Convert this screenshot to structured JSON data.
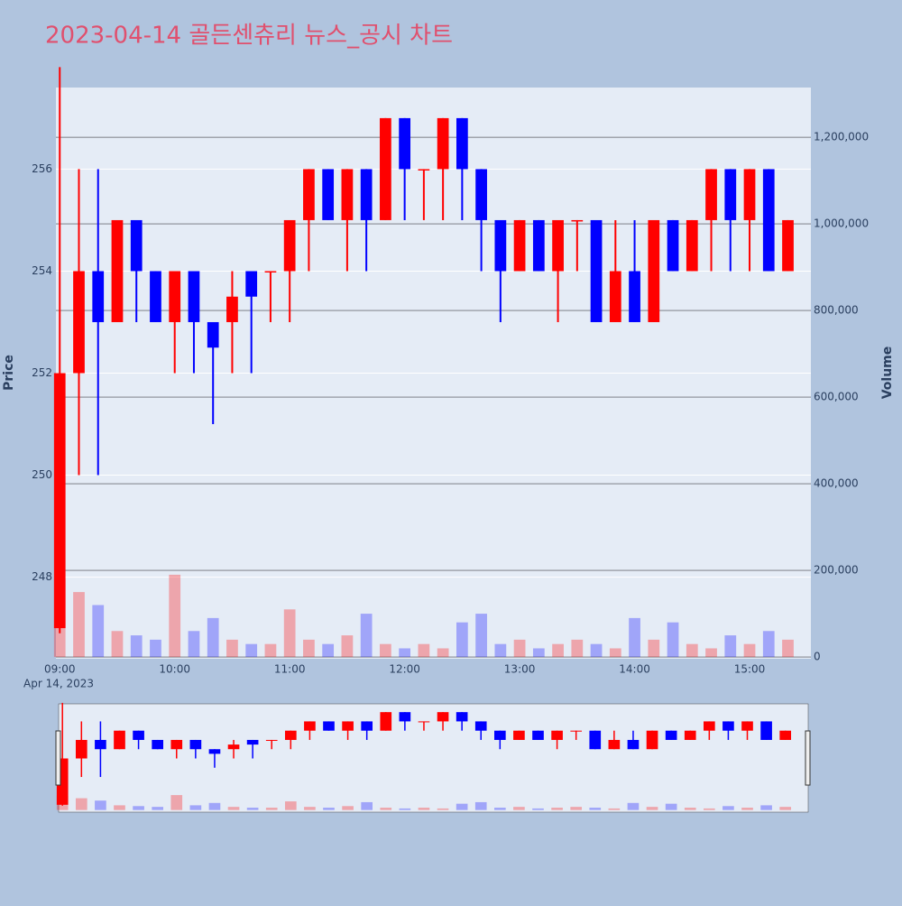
{
  "chart_data": {
    "type": "candlestick",
    "title": "2023-04-14 골든센츄리 뉴스_공시 차트",
    "y_title": "Price",
    "y2_title": "Volume",
    "x_date_label": "Apr 14, 2023",
    "x": [
      "09:00",
      "09:10",
      "09:20",
      "09:30",
      "09:40",
      "09:50",
      "10:00",
      "10:10",
      "10:20",
      "10:30",
      "10:40",
      "10:50",
      "11:00",
      "11:10",
      "11:20",
      "11:30",
      "11:40",
      "11:50",
      "12:00",
      "12:10",
      "12:20",
      "12:30",
      "12:40",
      "12:50",
      "13:00",
      "13:10",
      "13:20",
      "13:30",
      "13:40",
      "13:50",
      "14:00",
      "14:10",
      "14:20",
      "14:30",
      "14:40",
      "14:50",
      "15:00",
      "15:10",
      "15:20"
    ],
    "open": [
      247,
      252,
      254,
      253,
      255,
      254,
      253,
      254,
      253,
      253,
      254,
      254,
      254,
      255,
      256,
      255,
      256,
      255,
      257,
      256,
      256,
      257,
      256,
      255,
      254,
      255,
      254,
      255,
      255,
      253,
      254,
      253,
      255,
      254,
      255,
      256,
      255,
      256,
      254
    ],
    "high": [
      258,
      256,
      256,
      255,
      255,
      254,
      254,
      254,
      253,
      254,
      254,
      254,
      255,
      256,
      256,
      256,
      256,
      257,
      257,
      256,
      257,
      257,
      256,
      255,
      255,
      255,
      255,
      255,
      255,
      255,
      255,
      255,
      255,
      255,
      256,
      256,
      256,
      256,
      255
    ],
    "low": [
      246.9,
      250,
      250,
      253,
      253,
      253,
      252,
      252,
      251,
      252,
      252,
      253,
      253,
      254,
      255,
      254,
      254,
      255,
      255,
      255,
      255,
      255,
      254,
      253,
      254,
      254,
      253,
      254,
      253,
      253,
      253,
      253,
      254,
      254,
      254,
      254,
      254,
      254,
      254
    ],
    "close": [
      252,
      254,
      253,
      255,
      254,
      253,
      254,
      253,
      252.5,
      253.5,
      253.5,
      254,
      255,
      256,
      255,
      256,
      255,
      257,
      256,
      256,
      257,
      256,
      255,
      254,
      255,
      254,
      255,
      255,
      253,
      254,
      253,
      255,
      254,
      255,
      256,
      255,
      256,
      254,
      255
    ],
    "volume": [
      180000,
      150000,
      120000,
      60000,
      50000,
      40000,
      190000,
      60000,
      90000,
      40000,
      30000,
      30000,
      110000,
      40000,
      30000,
      50000,
      100000,
      30000,
      20000,
      30000,
      20000,
      80000,
      100000,
      30000,
      40000,
      20000,
      30000,
      40000,
      30000,
      20000,
      90000,
      40000,
      80000,
      30000,
      20000,
      50000,
      30000,
      60000,
      40000
    ],
    "increasing_color": "#ff0000",
    "decreasing_color": "#0000ff",
    "xlim": [
      "08:58",
      "15:32"
    ],
    "xticks": [
      "09:00",
      "10:00",
      "11:00",
      "12:00",
      "13:00",
      "14:00",
      "15:00"
    ],
    "ylim": [
      246.4,
      257.6
    ],
    "yticks": [
      248,
      250,
      252,
      254,
      256
    ],
    "y2lim": [
      -4000,
      1315000
    ],
    "y2ticks": [
      0,
      {
        "value": 200000,
        "label": "200,000"
      },
      {
        "value": 400000,
        "label": "400,000"
      },
      {
        "value": 600000,
        "label": "600,000"
      },
      {
        "value": 800000,
        "label": "800,000"
      },
      {
        "value": 1000000,
        "label": "1,000,000"
      },
      {
        "value": 1200000,
        "label": "1,200,000"
      }
    ],
    "grid": true,
    "rangeslider": true
  }
}
